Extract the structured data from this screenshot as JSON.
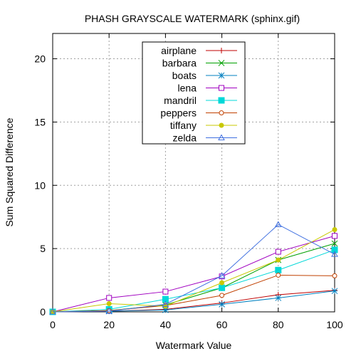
{
  "chart_data": {
    "type": "line",
    "title": "PHASH GRAYSCALE WATERMARK (sphinx.gif)",
    "xlabel": "Watermark Value",
    "ylabel": "Sum Squared Difference",
    "xlim": [
      0,
      100
    ],
    "ylim": [
      0,
      22
    ],
    "xticks": [
      0,
      20,
      40,
      60,
      80,
      100
    ],
    "yticks": [
      0,
      5,
      10,
      15,
      20
    ],
    "grid": true,
    "legend_position": "top-center",
    "x": [
      0,
      20,
      40,
      60,
      80,
      100
    ],
    "series": [
      {
        "name": "airplane",
        "color": "#c00000",
        "marker": "plus",
        "values": [
          0,
          0.05,
          0.2,
          0.7,
          1.35,
          1.7
        ]
      },
      {
        "name": "barbara",
        "color": "#00a000",
        "marker": "cross",
        "values": [
          0,
          0.1,
          0.55,
          1.9,
          4.1,
          5.4
        ]
      },
      {
        "name": "boats",
        "color": "#0080c0",
        "marker": "star",
        "values": [
          0,
          0.05,
          0.15,
          0.6,
          1.1,
          1.65
        ]
      },
      {
        "name": "lena",
        "color": "#a000c0",
        "marker": "square-open",
        "values": [
          0,
          1.1,
          1.6,
          2.8,
          4.75,
          6.0
        ]
      },
      {
        "name": "mandril",
        "color": "#00d8d8",
        "marker": "square-filled",
        "values": [
          0,
          0.2,
          1.0,
          1.9,
          3.3,
          4.9
        ]
      },
      {
        "name": "peppers",
        "color": "#c04000",
        "marker": "circle-open",
        "values": [
          0,
          0.1,
          0.5,
          1.3,
          2.9,
          2.85
        ]
      },
      {
        "name": "tiffany",
        "color": "#c8c800",
        "marker": "circle-filled",
        "values": [
          0,
          0.65,
          0.45,
          2.3,
          4.1,
          6.5
        ]
      },
      {
        "name": "zelda",
        "color": "#4070e0",
        "marker": "triangle-open",
        "values": [
          0,
          0.05,
          0.6,
          2.85,
          6.9,
          4.55
        ]
      }
    ]
  }
}
